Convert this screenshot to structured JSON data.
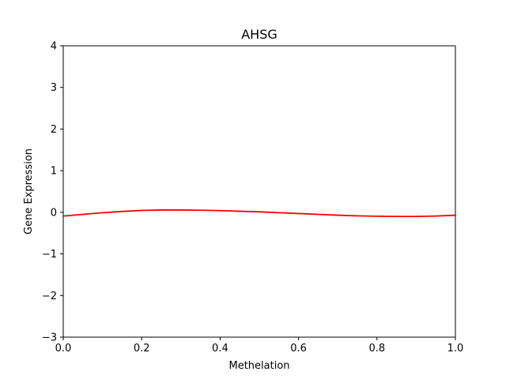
{
  "chart_data": {
    "type": "line",
    "title": "AHSG",
    "xlabel": "Methelation",
    "ylabel": "Gene Expression",
    "xlim": [
      0.0,
      1.0
    ],
    "ylim": [
      -3,
      4
    ],
    "xticks": [
      "0.0",
      "0.2",
      "0.4",
      "0.6",
      "0.8",
      "1.0"
    ],
    "yticks": [
      "−3",
      "−2",
      "−1",
      "0",
      "1",
      "2",
      "3",
      "4"
    ],
    "grid": false,
    "series": [
      {
        "color": "#ff0000",
        "x": [
          0.0,
          0.05,
          0.1,
          0.15,
          0.2,
          0.25,
          0.3,
          0.35,
          0.4,
          0.45,
          0.5,
          0.55,
          0.6,
          0.65,
          0.7,
          0.75,
          0.8,
          0.85,
          0.9,
          0.95,
          1.0
        ],
        "y": [
          -0.09,
          -0.05,
          -0.01,
          0.02,
          0.045,
          0.055,
          0.055,
          0.05,
          0.04,
          0.025,
          0.01,
          -0.01,
          -0.03,
          -0.05,
          -0.07,
          -0.085,
          -0.095,
          -0.1,
          -0.1,
          -0.09,
          -0.07
        ]
      }
    ]
  }
}
